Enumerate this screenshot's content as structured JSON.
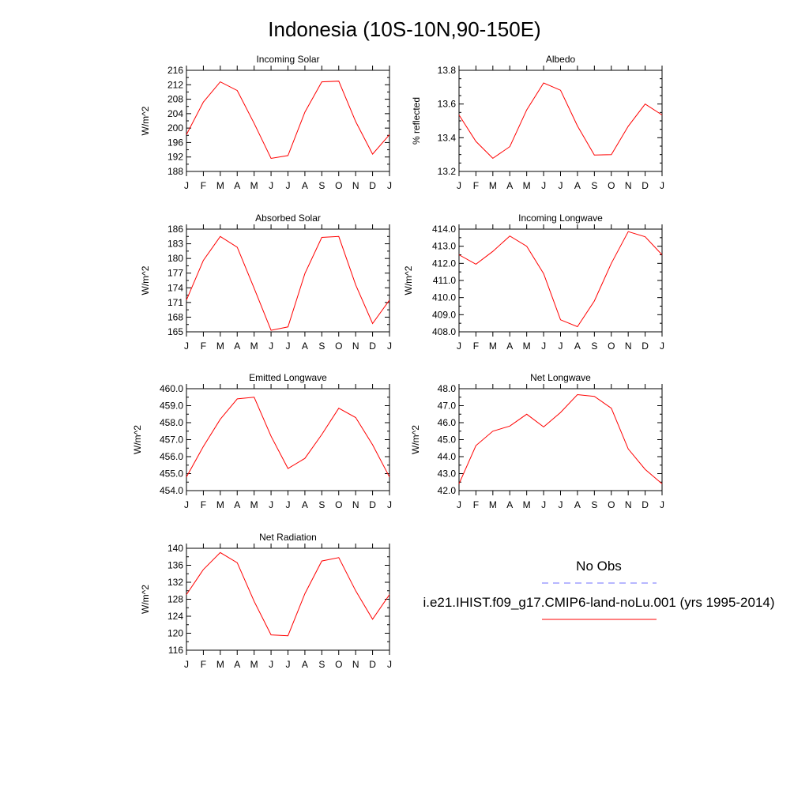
{
  "figure": {
    "title": "Indonesia (10S-10N,90-150E)"
  },
  "colors": {
    "model": "#ff0000",
    "obs": "#6f6fff"
  },
  "legend": {
    "obs_label": "No Obs",
    "model_label": "i.e21.IHIST.f09_g17.CMIP6-land-noLu.001 (yrs 1995-2014)"
  },
  "months": [
    "J",
    "F",
    "M",
    "A",
    "M",
    "J",
    "J",
    "A",
    "S",
    "O",
    "N",
    "D",
    "J"
  ],
  "chart_data": [
    {
      "type": "line",
      "title": "Incoming Solar",
      "ylabel": "W/m^2",
      "ylim": [
        188,
        216
      ],
      "yticks": [
        188,
        192,
        196,
        200,
        204,
        208,
        212,
        216
      ],
      "ytick_labels": [
        "188",
        "192",
        "196",
        "200",
        "204",
        "208",
        "212",
        "216"
      ],
      "yminor_step": 2,
      "categories": [
        "J",
        "F",
        "M",
        "A",
        "M",
        "J",
        "J",
        "A",
        "S",
        "O",
        "N",
        "D",
        "J"
      ],
      "values": [
        198.2,
        207.2,
        212.8,
        210.4,
        201.3,
        191.6,
        192.4,
        204.4,
        212.8,
        213.0,
        201.8,
        192.8,
        198.2
      ]
    },
    {
      "type": "line",
      "title": "Albedo",
      "ylabel": "% reflected",
      "ylim": [
        13.2,
        13.8
      ],
      "yticks": [
        13.2,
        13.4,
        13.6,
        13.8
      ],
      "ytick_labels": [
        "13.2",
        "13.4",
        "13.6",
        "13.8"
      ],
      "yminor_step": 0.05,
      "categories": [
        "J",
        "F",
        "M",
        "A",
        "M",
        "J",
        "J",
        "A",
        "S",
        "O",
        "N",
        "D",
        "J"
      ],
      "values": [
        13.535,
        13.378,
        13.278,
        13.347,
        13.565,
        13.725,
        13.682,
        13.47,
        13.297,
        13.3,
        13.468,
        13.6,
        13.535
      ]
    },
    {
      "type": "line",
      "title": "Absorbed Solar",
      "ylabel": "W/m^2",
      "ylim": [
        165,
        186
      ],
      "yticks": [
        165,
        168,
        171,
        174,
        177,
        180,
        183,
        186
      ],
      "ytick_labels": [
        "165",
        "168",
        "171",
        "174",
        "177",
        "180",
        "183",
        "186"
      ],
      "yminor_step": 1.5,
      "categories": [
        "J",
        "F",
        "M",
        "A",
        "M",
        "J",
        "J",
        "A",
        "S",
        "O",
        "N",
        "D",
        "J"
      ],
      "values": [
        171.5,
        179.6,
        184.5,
        182.3,
        173.9,
        165.3,
        166.0,
        176.9,
        184.3,
        184.5,
        174.6,
        166.7,
        171.5
      ]
    },
    {
      "type": "line",
      "title": "Incoming Longwave",
      "ylabel": "W/m^2",
      "ylim": [
        408.0,
        414.0
      ],
      "yticks": [
        408,
        409,
        410,
        411,
        412,
        413,
        414
      ],
      "ytick_labels": [
        "408.0",
        "409.0",
        "410.0",
        "411.0",
        "412.0",
        "413.0",
        "414.0"
      ],
      "yminor_step": 0.5,
      "categories": [
        "J",
        "F",
        "M",
        "A",
        "M",
        "J",
        "J",
        "A",
        "S",
        "O",
        "N",
        "D",
        "J"
      ],
      "values": [
        412.5,
        411.95,
        412.7,
        413.6,
        413.0,
        411.4,
        408.7,
        408.3,
        409.8,
        412.0,
        413.85,
        413.55,
        412.5
      ]
    },
    {
      "type": "line",
      "title": "Emitted Longwave",
      "ylabel": "W/m^2",
      "ylim": [
        454.0,
        460.0
      ],
      "yticks": [
        454,
        455,
        456,
        457,
        458,
        459,
        460
      ],
      "ytick_labels": [
        "454.0",
        "455.0",
        "456.0",
        "457.0",
        "458.0",
        "459.0",
        "460.0"
      ],
      "yminor_step": 0.5,
      "categories": [
        "J",
        "F",
        "M",
        "A",
        "M",
        "J",
        "J",
        "A",
        "S",
        "O",
        "N",
        "D",
        "J"
      ],
      "values": [
        454.8,
        456.6,
        458.2,
        459.4,
        459.5,
        457.2,
        455.3,
        455.9,
        457.3,
        458.85,
        458.3,
        456.7,
        454.8
      ]
    },
    {
      "type": "line",
      "title": "Net Longwave",
      "ylabel": "W/m^2",
      "ylim": [
        42.0,
        48.0
      ],
      "yticks": [
        42,
        43,
        44,
        45,
        46,
        47,
        48
      ],
      "ytick_labels": [
        "42.0",
        "43.0",
        "44.0",
        "45.0",
        "46.0",
        "47.0",
        "48.0"
      ],
      "yminor_step": 0.5,
      "categories": [
        "J",
        "F",
        "M",
        "A",
        "M",
        "J",
        "J",
        "A",
        "S",
        "O",
        "N",
        "D",
        "J"
      ],
      "values": [
        42.4,
        44.65,
        45.5,
        45.8,
        46.5,
        45.75,
        46.6,
        47.65,
        47.55,
        46.85,
        44.45,
        43.25,
        42.4
      ]
    },
    {
      "type": "line",
      "title": "Net Radiation",
      "ylabel": "W/m^2",
      "ylim": [
        116,
        140
      ],
      "yticks": [
        116,
        120,
        124,
        128,
        132,
        136,
        140
      ],
      "ytick_labels": [
        "116",
        "120",
        "124",
        "128",
        "132",
        "136",
        "140"
      ],
      "yminor_step": 2,
      "categories": [
        "J",
        "F",
        "M",
        "A",
        "M",
        "J",
        "J",
        "A",
        "S",
        "O",
        "N",
        "D",
        "J"
      ],
      "values": [
        129.1,
        135.0,
        139.0,
        136.6,
        127.5,
        119.6,
        119.4,
        129.3,
        137.0,
        137.8,
        130.0,
        123.3,
        129.1
      ]
    }
  ]
}
